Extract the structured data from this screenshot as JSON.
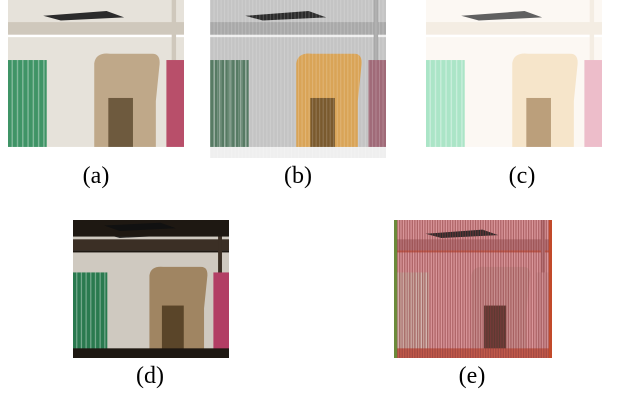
{
  "figure": {
    "panels": [
      {
        "id": "a",
        "caption": "(a)",
        "variant": "original",
        "colors": {
          "bg": "#e6e2da",
          "shelf": "#cfc8bc",
          "book_left": "#3f9466",
          "doc": "#bfa889",
          "doc_hole": "#6e5a3e",
          "book_right": "#b84f6a",
          "trim": "#ffffff"
        }
      },
      {
        "id": "b",
        "caption": "(b)",
        "variant": "grainy",
        "colors": {
          "bg": "#c4c4c4",
          "shelf": "#a9a9a9",
          "book_left": "#567a63",
          "doc": "#d9a457",
          "doc_hole": "#7a5a2e",
          "book_right": "#a06a78",
          "trim": "#efefef"
        }
      },
      {
        "id": "c",
        "caption": "(c)",
        "variant": "overexposed",
        "colors": {
          "bg": "#fbf6ef",
          "shelf": "#f0e7da",
          "book_left": "#8fdcb5",
          "doc": "#f3dcb9",
          "doc_hole": "#a57f4f",
          "book_right": "#e7a7b8",
          "trim": "#ffffff"
        }
      },
      {
        "id": "d",
        "caption": "(d)",
        "variant": "dark",
        "colors": {
          "bg": "#cfc9c0",
          "shelf": "#3b2f25",
          "book_left": "#2a7a4f",
          "doc": "#a08562",
          "doc_hole": "#5a4529",
          "book_right": "#b23e64",
          "trim": "#1e1812"
        }
      },
      {
        "id": "e",
        "caption": "(e)",
        "variant": "striped",
        "colors": {
          "bg": "#d9969a",
          "shelf": "#b67377",
          "book_left": "#c8a39a",
          "doc": "#c98f8f",
          "doc_hole": "#5c3a32",
          "book_right": "#cf8f93",
          "trim": "#c25a4a"
        }
      }
    ]
  }
}
